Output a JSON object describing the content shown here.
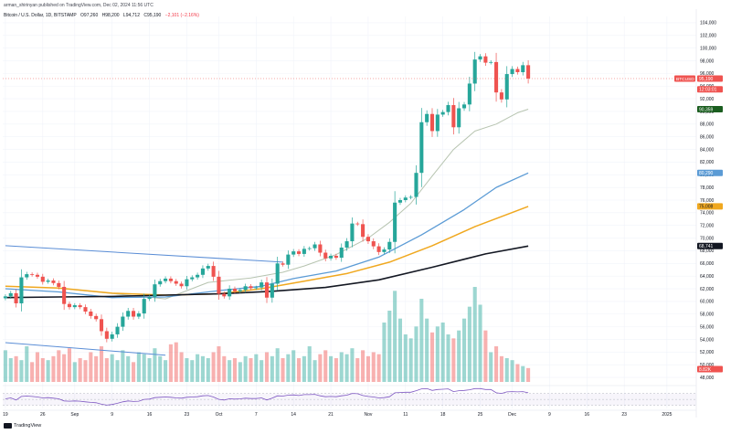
{
  "header": {
    "publisher": "arman_shirinyan published on TradingView.com, Dec 02, 2024 11:56 UTC",
    "symbol": "Bitcoin / U.S. Dollar, 1D, BITSTAMP",
    "ohlc": {
      "open": "O97,260",
      "high": "H98,200",
      "low": "L94,712",
      "close": "C95,190",
      "change": "−2,101 (−2.16%)"
    }
  },
  "logo": {
    "text": "TradingView"
  },
  "colors": {
    "up": "#26a69a",
    "down": "#ef5350",
    "ma_fast": "#b7c4b0",
    "ma_mid": "#5b9bd5",
    "ma_slow": "#f0a81f",
    "ma_long": "#131722",
    "trend": "#5b8ed6",
    "rsi": "#7e57c2"
  },
  "chart_data": {
    "type": "candlestick",
    "instrument": "BTCUSD",
    "y_axis": {
      "ylim": [
        47000,
        105000
      ],
      "ticks": [
        48000,
        50000,
        52000,
        54000,
        56000,
        58000,
        60000,
        62000,
        64000,
        66000,
        68000,
        70000,
        72000,
        74000,
        76000,
        78000,
        80000,
        82000,
        84000,
        86000,
        88000,
        90000,
        92000,
        94000,
        96000,
        98000,
        100000,
        102000,
        104000
      ],
      "tick_labels": [
        "48,000",
        "50,000",
        "52,000",
        "54,000",
        "56,000",
        "58,000",
        "60,000",
        "62,000",
        "64,000",
        "66,000",
        "68,000",
        "70,000",
        "72,000",
        "74,000",
        "76,000",
        "78,000",
        "80,000",
        "82,000",
        "84,000",
        "86,000",
        "88,000",
        "90,000",
        "92,000",
        "94,000",
        "96,000",
        "98,000",
        "100,000",
        "102,000",
        "104,000"
      ]
    },
    "x_axis": {
      "tick_labels": [
        "19",
        "26",
        "Sep",
        "9",
        "16",
        "23",
        "Oct",
        "7",
        "14",
        "21",
        "Nov",
        "11",
        "18",
        "25",
        "Dec",
        "9",
        "16",
        "23",
        "2025"
      ],
      "tick_index": [
        0,
        7,
        13,
        20,
        27,
        34,
        40,
        47,
        54,
        61,
        68,
        75,
        82,
        89,
        95,
        102,
        109,
        116,
        124
      ],
      "total_bars": 130
    },
    "price_labels": {
      "symbol": "BTCUSD",
      "last": "95,190",
      "countdown": "12:03:01",
      "ma_fast": "90,359",
      "ma_mid": "80,290",
      "ma_slow": "75,008",
      "ma_long": "68,741",
      "volume": "8.82K"
    },
    "closes": [
      60800,
      61300,
      59700,
      63800,
      64300,
      64200,
      63900,
      63100,
      63300,
      62900,
      62300,
      59600,
      59100,
      59400,
      59100,
      58400,
      57700,
      57200,
      55300,
      54100,
      54800,
      56000,
      57600,
      58500,
      57600,
      58100,
      60400,
      60700,
      62700,
      63200,
      63600,
      63200,
      62800,
      62400,
      63500,
      63800,
      64200,
      65200,
      65600,
      63900,
      61200,
      60800,
      62000,
      61600,
      61800,
      62400,
      62100,
      62200,
      63000,
      60600,
      62800,
      66000,
      65800,
      67400,
      67900,
      67500,
      68300,
      68400,
      69000,
      67700,
      66800,
      67200,
      66900,
      68500,
      69500,
      72300,
      72200,
      70200,
      69500,
      68700,
      67800,
      68200,
      69400,
      75600,
      76000,
      76400,
      76500,
      80300,
      88300,
      89600,
      86900,
      89500,
      89900,
      91000,
      87500,
      90500,
      91100,
      94400,
      98200,
      98700,
      97700,
      97800,
      93000,
      91900,
      95900,
      96700,
      96200,
      97300,
      95190
    ],
    "ma_fast_points": [
      [
        11,
        62000
      ],
      [
        30,
        60400
      ],
      [
        38,
        63000
      ],
      [
        46,
        63700
      ],
      [
        52,
        64600
      ],
      [
        56,
        65600
      ],
      [
        62,
        67400
      ],
      [
        68,
        70000
      ],
      [
        72,
        72500
      ],
      [
        76,
        75500
      ],
      [
        80,
        79800
      ],
      [
        84,
        84000
      ],
      [
        88,
        86900
      ],
      [
        92,
        88000
      ],
      [
        96,
        89800
      ],
      [
        98,
        90359
      ]
    ],
    "ma_mid_points": [
      [
        0,
        62000
      ],
      [
        10,
        61500
      ],
      [
        20,
        60600
      ],
      [
        30,
        60700
      ],
      [
        40,
        61700
      ],
      [
        48,
        62400
      ],
      [
        54,
        63600
      ],
      [
        62,
        64800
      ],
      [
        70,
        67000
      ],
      [
        78,
        70500
      ],
      [
        86,
        74500
      ],
      [
        92,
        78000
      ],
      [
        98,
        80290
      ]
    ],
    "ma_slow_points": [
      [
        0,
        62400
      ],
      [
        10,
        62100
      ],
      [
        20,
        61300
      ],
      [
        30,
        61000
      ],
      [
        40,
        61200
      ],
      [
        48,
        62000
      ],
      [
        56,
        63200
      ],
      [
        64,
        64400
      ],
      [
        72,
        66200
      ],
      [
        80,
        68800
      ],
      [
        88,
        71800
      ],
      [
        98,
        75008
      ]
    ],
    "ma_long_points": [
      [
        0,
        60600
      ],
      [
        10,
        60700
      ],
      [
        20,
        60800
      ],
      [
        30,
        61000
      ],
      [
        40,
        61200
      ],
      [
        50,
        61600
      ],
      [
        60,
        62200
      ],
      [
        70,
        63400
      ],
      [
        80,
        65400
      ],
      [
        90,
        67500
      ],
      [
        98,
        68741
      ]
    ],
    "trendlines": [
      {
        "from": [
          0,
          68800
        ],
        "to": [
          52,
          66200
        ]
      },
      {
        "from": [
          0,
          53500
        ],
        "to": [
          30,
          51500
        ]
      }
    ],
    "volume": [
      1.6,
      1.2,
      1.3,
      1.1,
      1.8,
      1.0,
      1.5,
      1.2,
      1.1,
      1.3,
      1.6,
      1.4,
      1.7,
      1.0,
      1.2,
      1.1,
      1.5,
      1.3,
      1.8,
      1.2,
      1.4,
      1.1,
      1.6,
      1.3,
      1.0,
      1.5,
      1.4,
      1.2,
      1.7,
      1.3,
      1.1,
      1.9,
      2.0,
      1.5,
      1.2,
      1.1,
      1.4,
      1.3,
      1.2,
      1.5,
      1.8,
      1.3,
      1.1,
      1.2,
      1.0,
      1.3,
      1.2,
      1.4,
      1.1,
      1.5,
      1.3,
      1.7,
      1.2,
      1.4,
      1.6,
      1.2,
      1.3,
      1.8,
      1.1,
      1.4,
      1.6,
      1.3,
      1.2,
      1.5,
      1.4,
      1.7,
      1.2,
      1.6,
      1.3,
      1.5,
      1.4,
      3.0,
      3.6,
      4.6,
      3.2,
      2.4,
      2.2,
      2.8,
      4.2,
      3.2,
      2.5,
      2.8,
      3.0,
      2.4,
      2.2,
      2.6,
      3.2,
      3.8,
      4.8,
      3.9,
      2.6,
      1.5,
      1.8,
      1.3,
      1.2,
      1.1,
      0.9,
      0.8,
      0.7
    ],
    "rsi": [
      52,
      55,
      48,
      60,
      61,
      60,
      58,
      55,
      56,
      54,
      52,
      45,
      44,
      45,
      44,
      42,
      40,
      39,
      34,
      31,
      33,
      37,
      42,
      45,
      43,
      44,
      50,
      51,
      56,
      57,
      58,
      57,
      55,
      54,
      57,
      58,
      59,
      62,
      63,
      58,
      50,
      48,
      52,
      51,
      52,
      54,
      53,
      53,
      55,
      48,
      54,
      62,
      61,
      64,
      65,
      63,
      66,
      66,
      67,
      62,
      59,
      60,
      59,
      62,
      64,
      70,
      69,
      63,
      60,
      58,
      55,
      56,
      59,
      72,
      73,
      74,
      74,
      79,
      85,
      86,
      80,
      83,
      84,
      85,
      76,
      79,
      80,
      82,
      86,
      86,
      83,
      83,
      72,
      70,
      75,
      76,
      75,
      76,
      72
    ]
  }
}
